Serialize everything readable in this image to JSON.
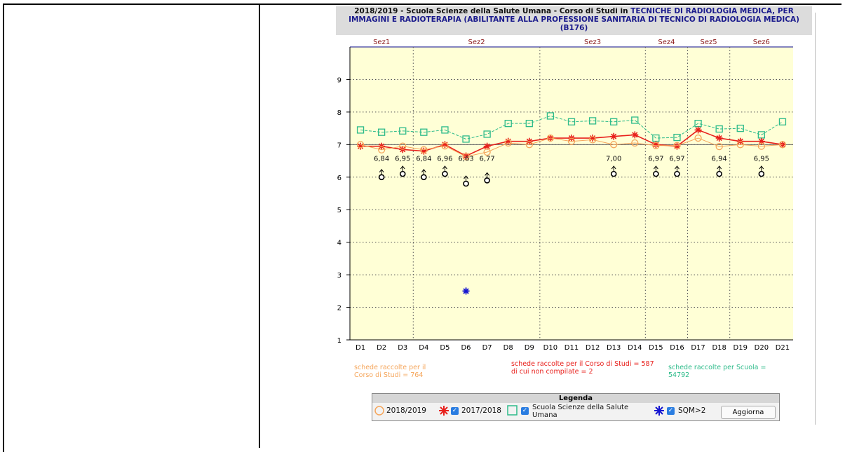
{
  "title": {
    "prefix": "2018/2019 - Scuola Scienze della Salute Umana - Corso di Studi in ",
    "course": "TECNICHE DI RADIOLOGIA MEDICA, PER IMMAGINI E RADIOTERAPIA (ABILITANTE ALLA PROFESSIONE SANITARIA DI TECNICO DI RADIOLOGIA MEDICA) (B176)"
  },
  "notes": {
    "cds_current": "schede raccolte per il Corso di Studi = 764",
    "cds_prev_line1": "schede raccolte per il Corso di Studi = 587",
    "cds_prev_line2": "di cui non compilate = 2",
    "school": "schede raccolte per Scuola = 54792"
  },
  "legend": {
    "heading": "Legenda",
    "item_current": "2018/2019",
    "item_prev": "2017/2018",
    "item_school": "Scuola Scienze della Salute Umana",
    "item_sqm": "SQM>2",
    "button": "Aggiorna"
  },
  "colors": {
    "current": "#f5a55a",
    "prev": "#e8201c",
    "school": "#2dbb8a",
    "sqm": "#1515d0",
    "plot_bg": "#ffffd6",
    "section_label": "#8b1a1a"
  },
  "chart_data": {
    "type": "line",
    "categories": [
      "D1",
      "D2",
      "D3",
      "D4",
      "D5",
      "D6",
      "D7",
      "D8",
      "D9",
      "D10",
      "D11",
      "D12",
      "D13",
      "D14",
      "D15",
      "D16",
      "D17",
      "D18",
      "D19",
      "D20",
      "D21"
    ],
    "ylim": [
      1,
      10
    ],
    "yticks": [
      1,
      2,
      3,
      4,
      5,
      6,
      7,
      8,
      9
    ],
    "sections": [
      {
        "label": "Sez1",
        "from": 1,
        "to": 3
      },
      {
        "label": "Sez2",
        "from": 4,
        "to": 9
      },
      {
        "label": "Sez3",
        "from": 10,
        "to": 14
      },
      {
        "label": "Sez4",
        "from": 15,
        "to": 16
      },
      {
        "label": "Sez5",
        "from": 17,
        "to": 18
      },
      {
        "label": "Sez6",
        "from": 19,
        "to": 21
      }
    ],
    "series": [
      {
        "name": "2018/2019",
        "values": [
          7.0,
          6.84,
          6.95,
          6.84,
          6.96,
          6.63,
          6.77,
          7.05,
          7.0,
          7.2,
          7.1,
          7.15,
          7.0,
          7.05,
          6.97,
          6.97,
          7.2,
          6.94,
          7.0,
          6.95,
          7.0
        ]
      },
      {
        "name": "2017/2018",
        "values": [
          6.95,
          6.95,
          6.85,
          6.8,
          7.0,
          6.65,
          6.95,
          7.1,
          7.1,
          7.2,
          7.2,
          7.2,
          7.25,
          7.3,
          7.0,
          6.95,
          7.45,
          7.2,
          7.1,
          7.1,
          7.0
        ]
      },
      {
        "name": "Scuola Scienze della Salute Umana",
        "values": [
          7.45,
          7.38,
          7.42,
          7.38,
          7.45,
          7.17,
          7.32,
          7.65,
          7.65,
          7.88,
          7.7,
          7.73,
          7.7,
          7.75,
          7.2,
          7.22,
          7.65,
          7.48,
          7.5,
          7.3,
          7.7
        ]
      }
    ],
    "value_labels": [
      {
        "x": "D2",
        "text": "6,84"
      },
      {
        "x": "D3",
        "text": "6,95"
      },
      {
        "x": "D4",
        "text": "6,84"
      },
      {
        "x": "D5",
        "text": "6,96"
      },
      {
        "x": "D6",
        "text": "6,63"
      },
      {
        "x": "D7",
        "text": "6,77"
      },
      {
        "x": "D13",
        "text": "7,00"
      },
      {
        "x": "D15",
        "text": "6,97"
      },
      {
        "x": "D16",
        "text": "6,97"
      },
      {
        "x": "D18",
        "text": "6,94"
      },
      {
        "x": "D20",
        "text": "6,95"
      }
    ],
    "markers_below": [
      {
        "x": "D2",
        "y": 6.0
      },
      {
        "x": "D3",
        "y": 6.1
      },
      {
        "x": "D4",
        "y": 6.0
      },
      {
        "x": "D5",
        "y": 6.1
      },
      {
        "x": "D6",
        "y": 5.8
      },
      {
        "x": "D7",
        "y": 5.9
      },
      {
        "x": "D13",
        "y": 6.1
      },
      {
        "x": "D15",
        "y": 6.1
      },
      {
        "x": "D16",
        "y": 6.1
      },
      {
        "x": "D18",
        "y": 6.1
      },
      {
        "x": "D20",
        "y": 6.1
      }
    ],
    "sqm_points": [
      {
        "x": "D6",
        "y": 2.5
      }
    ],
    "reference_line": 7
  }
}
